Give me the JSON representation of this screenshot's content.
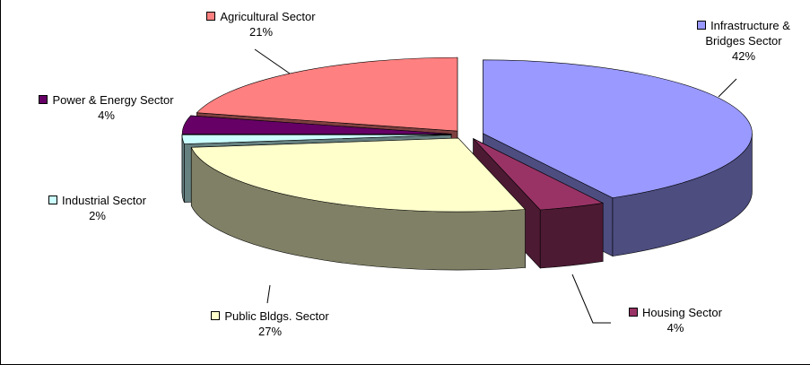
{
  "chart_data": {
    "type": "pie3d",
    "categories": [
      "Infrastructure & Bridges Sector",
      "Housing Sector",
      "Public Bldgs. Sector",
      "Industrial Sector",
      "Power & Energy Sector",
      "Agricultural Sector"
    ],
    "values": [
      42,
      4,
      27,
      2,
      4,
      21
    ],
    "value_labels": [
      "42%",
      "4%",
      "27%",
      "2%",
      "4%",
      "21%"
    ],
    "colors": [
      "#9999ff",
      "#993366",
      "#ffffcc",
      "#ccffff",
      "#660066",
      "#ff8080"
    ]
  }
}
